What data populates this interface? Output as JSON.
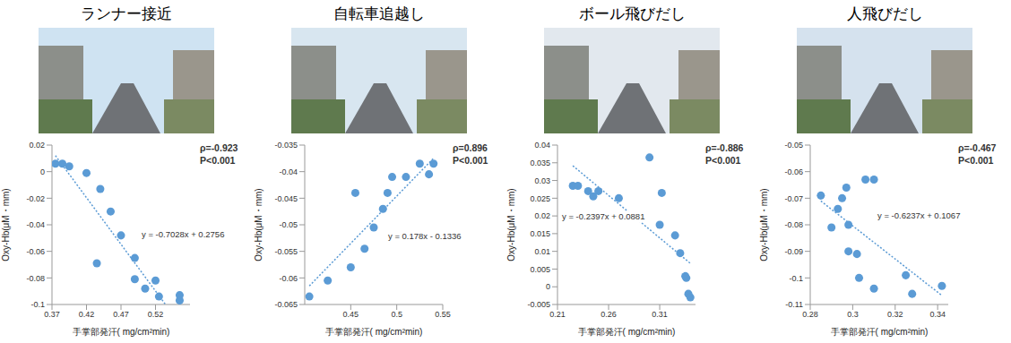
{
  "chart_data": [
    {
      "type": "scatter",
      "title": "ランナー接近",
      "x_label": "手掌部発汗( mg/cm²min)",
      "y_label": "Oxy-Hb(μM・mm)",
      "color": "#5b9bd5",
      "marker": "circle",
      "x": [
        0.375,
        0.385,
        0.395,
        0.42,
        0.44,
        0.455,
        0.47,
        0.435,
        0.49,
        0.49,
        0.505,
        0.52,
        0.525,
        0.555,
        0.555
      ],
      "values": [
        0.006,
        0.006,
        0.004,
        -0.001,
        -0.013,
        -0.03,
        -0.048,
        -0.069,
        -0.065,
        -0.081,
        -0.088,
        -0.082,
        -0.094,
        -0.093,
        -0.097
      ],
      "trend": {
        "slope": -0.7028,
        "intercept": 0.2756,
        "label": "y = -0.7028x + 0.2756",
        "line_style": "dotted",
        "color": "#5b9bd5"
      },
      "annotations": [
        "ρ=-0.923",
        "P<0.001"
      ],
      "xlim": [
        0.37,
        0.57
      ],
      "xticks": [
        0.37,
        0.42,
        0.47,
        0.52
      ],
      "ylim": [
        -0.1,
        0.02
      ],
      "yticks": [
        0.02,
        0,
        -0.02,
        -0.04,
        -0.06,
        -0.08,
        -0.1
      ],
      "grid": false
    },
    {
      "type": "scatter",
      "title": "自転車追越し",
      "x_label": "手掌部発汗( mg/cm²min)",
      "y_label": "Oxy-Hb(μM・mm)",
      "color": "#5b9bd5",
      "marker": "circle",
      "x": [
        0.405,
        0.425,
        0.45,
        0.455,
        0.465,
        0.475,
        0.485,
        0.49,
        0.495,
        0.51,
        0.525,
        0.535,
        0.54
      ],
      "values": [
        -0.0635,
        -0.0605,
        -0.058,
        -0.044,
        -0.0545,
        -0.0505,
        -0.047,
        -0.044,
        -0.041,
        -0.041,
        -0.0385,
        -0.0405,
        -0.0385
      ],
      "trend": {
        "slope": 0.178,
        "intercept": -0.1336,
        "label": "y = 0.178x - 0.1336",
        "line_style": "dotted",
        "color": "#5b9bd5"
      },
      "annotations": [
        "ρ=0.896",
        "P<0.001"
      ],
      "xlim": [
        0.4,
        0.55
      ],
      "xticks": [
        0.45,
        0.5,
        0.55
      ],
      "ylim": [
        -0.065,
        -0.035
      ],
      "yticks": [
        -0.035,
        -0.04,
        -0.045,
        -0.05,
        -0.055,
        -0.06,
        -0.065
      ],
      "grid": false
    },
    {
      "type": "scatter",
      "title": "ボール飛びだし",
      "x_label": "手掌部発汗( mg/cm²min)",
      "y_label": "Oxy-Hb(μM・mm)",
      "color": "#5b9bd5",
      "marker": "circle",
      "x": [
        0.225,
        0.23,
        0.24,
        0.245,
        0.25,
        0.27,
        0.3,
        0.31,
        0.312,
        0.325,
        0.33,
        0.335,
        0.336,
        0.338,
        0.34
      ],
      "values": [
        0.0285,
        0.0285,
        0.027,
        0.0255,
        0.027,
        0.025,
        0.0365,
        0.0175,
        0.0265,
        0.0145,
        0.0095,
        0.003,
        0.0025,
        -0.002,
        -0.003
      ],
      "trend": {
        "slope": -0.2397,
        "intercept": 0.0881,
        "label": "y = -0.2397x + 0.0881",
        "line_style": "dotted",
        "color": "#5b9bd5"
      },
      "annotations": [
        "ρ=-0.886",
        "P<0.001"
      ],
      "xlim": [
        0.21,
        0.345
      ],
      "xticks": [
        0.21,
        0.26,
        0.31
      ],
      "ylim": [
        -0.005,
        0.04
      ],
      "yticks": [
        0.04,
        0.035,
        0.03,
        0.025,
        0.02,
        0.015,
        0.01,
        0.005,
        0,
        -0.005
      ],
      "grid": false
    },
    {
      "type": "scatter",
      "title": "人飛びだし",
      "x_label": "手掌部発汗( mg/cm²min)",
      "y_label": "Oxy-Hb(μM・mm)",
      "color": "#5b9bd5",
      "marker": "circle",
      "x": [
        0.285,
        0.29,
        0.293,
        0.295,
        0.297,
        0.298,
        0.298,
        0.302,
        0.303,
        0.306,
        0.31,
        0.31,
        0.325,
        0.328,
        0.342
      ],
      "values": [
        -0.069,
        -0.081,
        -0.074,
        -0.07,
        -0.066,
        -0.08,
        -0.09,
        -0.091,
        -0.1,
        -0.063,
        -0.063,
        -0.104,
        -0.099,
        -0.106,
        -0.103
      ],
      "trend": {
        "slope": -0.6237,
        "intercept": 0.1067,
        "label": "y = -0.6237x + 0.1067",
        "line_style": "dotted",
        "color": "#5b9bd5"
      },
      "annotations": [
        "ρ=-0.467",
        "P<0.001"
      ],
      "xlim": [
        0.28,
        0.345
      ],
      "xticks": [
        0.28,
        0.3,
        0.32,
        0.34
      ],
      "ylim": [
        -0.11,
        -0.05
      ],
      "yticks": [
        -0.05,
        -0.06,
        -0.07,
        -0.08,
        -0.09,
        -0.1,
        -0.11
      ],
      "grid": false
    }
  ]
}
